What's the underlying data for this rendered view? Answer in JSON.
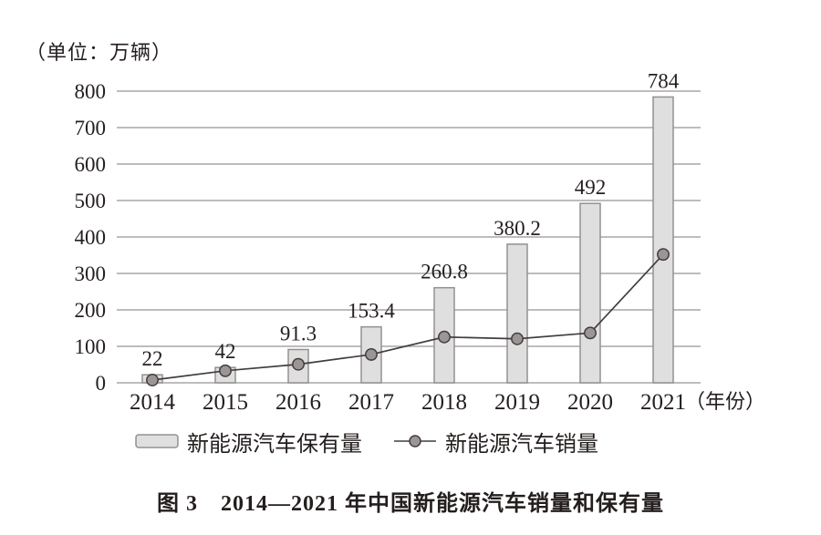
{
  "unit_label": "（单位：万辆）",
  "x_axis_label": "（年份）",
  "caption": "图 3　2014—2021 年中国新能源汽车销量和保有量",
  "legend": {
    "bar_label": "新能源汽车保有量",
    "line_label": "新能源汽车销量"
  },
  "colors": {
    "bar_fill": "#e0dfdf",
    "bar_border": "#949090",
    "grid": "#a9a5a5",
    "line": "#433d3d",
    "marker_fill": "#9b9595",
    "marker_border": "#433d3d",
    "text": "#241e1e"
  },
  "chart_data": {
    "type": "bar",
    "title": "图 3　2014—2021 年中国新能源汽车销量和保有量",
    "unit": "万辆",
    "categories": [
      "2014",
      "2015",
      "2016",
      "2017",
      "2018",
      "2019",
      "2020",
      "2021"
    ],
    "series": [
      {
        "name": "新能源汽车保有量",
        "render": "bar",
        "values": [
          22,
          42,
          91.3,
          153.4,
          260.8,
          380.2,
          492,
          784
        ],
        "data_labels_shown": true
      },
      {
        "name": "新能源汽车销量",
        "render": "line",
        "values": [
          7.5,
          33,
          50.7,
          77.7,
          125.6,
          120.6,
          136.7,
          352.1
        ],
        "data_labels_shown": false
      }
    ],
    "xlabel": "（年份）",
    "ylabel": "（单位：万辆）",
    "ylim": [
      0,
      800
    ],
    "ytick_step": 100,
    "grid": true,
    "legend_position": "bottom"
  }
}
